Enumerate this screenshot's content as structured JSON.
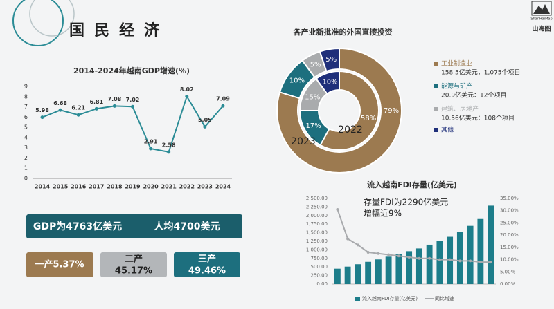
{
  "header": {
    "title": "国民经济",
    "logo_en": "ShanHaiMap",
    "logo_cn": "山海图"
  },
  "stats": {
    "gdp": "GDP为4763亿美元",
    "per_capita": "人均4700美元",
    "primary": "一产5.37%",
    "secondary": [
      "二产",
      "45.17%"
    ],
    "tertiary": [
      "三产",
      "49.46%"
    ]
  },
  "chart_data": [
    {
      "type": "line",
      "title": "2014-2024年越南GDP增速(%)",
      "categories": [
        "2014",
        "2015",
        "2016",
        "2017",
        "2018",
        "2019",
        "2020",
        "2021",
        "2022",
        "2023",
        "2024"
      ],
      "values": [
        5.98,
        6.68,
        6.21,
        6.81,
        7.08,
        7.02,
        2.91,
        2.58,
        8.02,
        5.05,
        7.09
      ],
      "color": "#2b8c96",
      "ylim": [
        0,
        9
      ],
      "yticks": [
        0,
        1,
        2,
        3,
        4,
        5,
        6,
        7,
        8,
        9
      ],
      "grid": false
    },
    {
      "type": "donut",
      "title": "各产业新批准的外国直接投资",
      "categories": [
        "工业制造业",
        "能源与矿产",
        "建筑、房地产",
        "其他"
      ],
      "notes": [
        "158.5亿美元，1,075个项目",
        "20.9亿美元：12个项目",
        "10.56亿美元：108个项目",
        null
      ],
      "colors": [
        "#9c7a50",
        "#1d6f7e",
        "#a9abad",
        "#1f2f7a"
      ],
      "rings": [
        {
          "name": "2023",
          "values": [
            79,
            10,
            5,
            5
          ],
          "value_labels": [
            "79%",
            "10%",
            "5%",
            "5%"
          ]
        },
        {
          "name": "2022",
          "values": [
            58,
            17,
            15,
            10
          ],
          "value_labels": [
            "58%",
            "17%",
            "15%",
            "10%"
          ]
        }
      ]
    },
    {
      "type": "combo",
      "title": "流入越南FDI存量(亿美元)",
      "annotation": [
        "存量FDI为2290亿美元",
        "增幅近9%"
      ],
      "categories": [
        null,
        null,
        null,
        null,
        null,
        null,
        null,
        null,
        null,
        null,
        null,
        null,
        null,
        null,
        null,
        null
      ],
      "series": [
        {
          "name": "流入越南FDI存量(亿美元)",
          "color": "#1d7d8a",
          "values": [
            450,
            510,
            580,
            650,
            720,
            800,
            880,
            960,
            1040,
            1150,
            1260,
            1380,
            1530,
            1700,
            1900,
            2290
          ]
        },
        {
          "name": "同比增速",
          "color": "#a8aaad",
          "axis": "y2",
          "values": [
            30.5,
            18.5,
            16,
            13,
            12.5,
            12,
            11.5,
            11,
            10.5,
            10.5,
            10,
            10,
            9.5,
            9.5,
            9,
            9
          ]
        }
      ],
      "ylim": [
        0,
        2500
      ],
      "yticks": [
        {
          "value": 0,
          "label": "0.00"
        },
        {
          "value": 250,
          "label": "250.00"
        },
        {
          "value": 500,
          "label": "500.00"
        },
        {
          "value": 750,
          "label": "750.00"
        },
        {
          "value": 1000,
          "label": "1,000.00"
        },
        {
          "value": 1250,
          "label": "1,250.00"
        },
        {
          "value": 1500,
          "label": "1,500.00"
        },
        {
          "value": 1750,
          "label": "1,750.00"
        },
        {
          "value": 2000,
          "label": "2,000.00"
        },
        {
          "value": 2250,
          "label": "2,250.00"
        },
        {
          "value": 2500,
          "label": "2,500.00"
        }
      ],
      "y2lim": [
        0,
        35
      ],
      "y2ticks": [
        {
          "value": 0,
          "label": "0.00%"
        },
        {
          "value": 5,
          "label": "5.00%"
        },
        {
          "value": 10,
          "label": "10.00%"
        },
        {
          "value": 15,
          "label": "15.00%"
        },
        {
          "value": 20,
          "label": "20.00%"
        },
        {
          "value": 25,
          "label": "25.00%"
        },
        {
          "value": 30,
          "label": "30.00%"
        },
        {
          "value": 35,
          "label": "35.00%"
        }
      ]
    }
  ]
}
